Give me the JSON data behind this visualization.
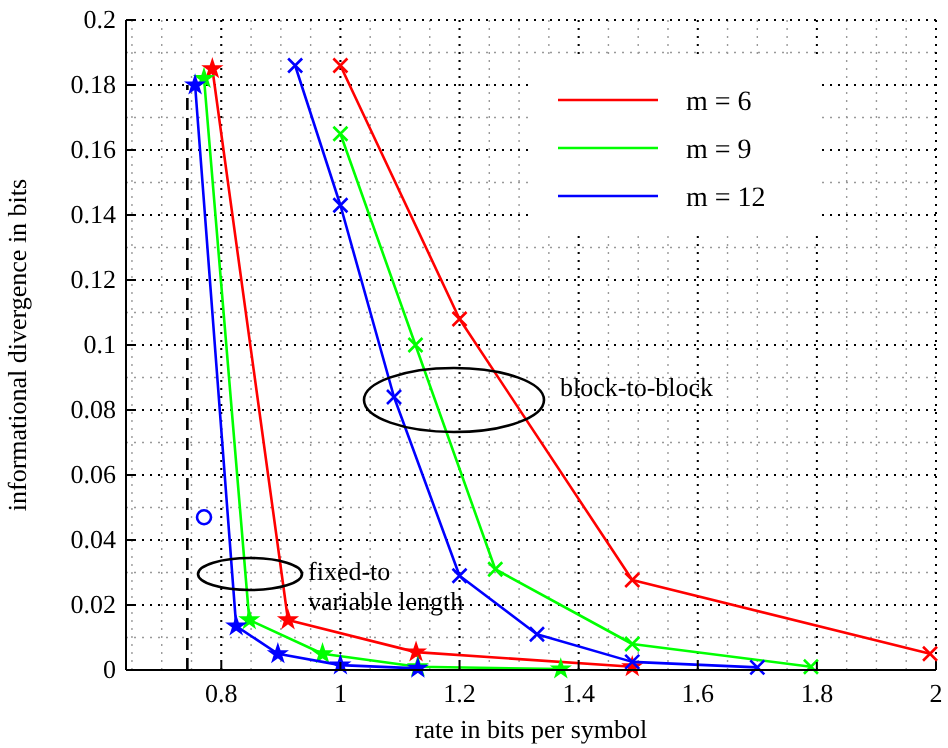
{
  "chart_data": {
    "type": "line",
    "xlabel": "rate in bits per symbol",
    "ylabel": "informational divergence in bits",
    "xlim": [
      0.64,
      2
    ],
    "ylim": [
      0,
      0.2
    ],
    "xticks": [
      0.8,
      1,
      1.2,
      1.4,
      1.6,
      1.8,
      2
    ],
    "yticks": [
      0,
      0.02,
      0.04,
      0.06,
      0.08,
      0.1,
      0.12,
      0.14,
      0.16,
      0.18,
      0.2
    ],
    "grid": true,
    "legend": "top right",
    "series": [
      {
        "name": "m = 6",
        "color": "#ff0000",
        "marker": "star",
        "x": [
          0.785,
          0.912,
          1.127,
          1.49
        ],
        "values": [
          0.185,
          0.0154,
          0.0055,
          0.001
        ]
      },
      {
        "name": "m = 9",
        "color": "#00ff00",
        "marker": "star",
        "x": [
          0.771,
          0.847,
          0.97,
          1.13,
          1.37
        ],
        "values": [
          0.182,
          0.0154,
          0.005,
          0.001,
          0.0003
        ]
      },
      {
        "name": "m = 12",
        "color": "#0000ff",
        "marker": "star",
        "x": [
          0.756,
          0.825,
          0.895,
          1.0,
          1.13
        ],
        "values": [
          0.18,
          0.0135,
          0.005,
          0.0015,
          0.0005
        ]
      },
      {
        "color": "#ff0000",
        "marker": "cross",
        "x": [
          1.0,
          1.2,
          1.49,
          1.99
        ],
        "values": [
          0.186,
          0.108,
          0.0277,
          0.005
        ]
      },
      {
        "color": "#00ff00",
        "marker": "cross",
        "x": [
          1.0,
          1.126,
          1.26,
          1.49,
          1.79
        ],
        "values": [
          0.165,
          0.1,
          0.031,
          0.008,
          0.001
        ]
      },
      {
        "color": "#0000ff",
        "marker": "cross",
        "x": [
          0.924,
          1.0,
          1.09,
          1.2,
          1.33,
          1.49,
          1.7
        ],
        "values": [
          0.186,
          0.143,
          0.084,
          0.029,
          0.011,
          0.0025,
          0.0008
        ]
      },
      {
        "color": "#0000ff",
        "type": "scatter",
        "marker": "circle",
        "x": [
          0.771
        ],
        "values": [
          0.047
        ]
      },
      {
        "color": "#000000",
        "line_style": "dashed",
        "marker": "none",
        "x": [
          0.743,
          0.743
        ],
        "values": [
          0,
          0.18
        ]
      }
    ],
    "annotations": [
      "block-to-block",
      "fixed-to variable length"
    ]
  }
}
